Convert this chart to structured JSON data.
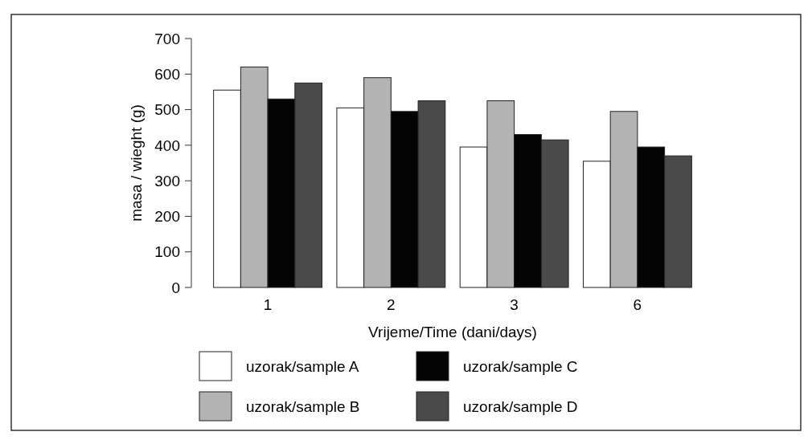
{
  "chart_data": {
    "type": "bar",
    "xlabel": "Vrijeme/Time (dani/days)",
    "ylabel": "masa / wieght (g)",
    "categories": [
      "1",
      "2",
      "3",
      "6"
    ],
    "series": [
      {
        "name": "uzorak/sample A",
        "color": "#ffffff",
        "values": [
          555,
          505,
          395,
          355
        ]
      },
      {
        "name": "uzorak/sample B",
        "color": "#b3b3b3",
        "values": [
          620,
          590,
          525,
          495
        ]
      },
      {
        "name": "uzorak/sample C",
        "color": "#030303",
        "values": [
          530,
          495,
          430,
          395
        ]
      },
      {
        "name": "uzorak/sample D",
        "color": "#4a4a4a",
        "values": [
          575,
          525,
          415,
          370
        ]
      }
    ],
    "ylim": [
      0,
      700
    ],
    "yticks": [
      0,
      100,
      200,
      300,
      400,
      500,
      600,
      700
    ],
    "grid": false,
    "legend": "bottom"
  }
}
